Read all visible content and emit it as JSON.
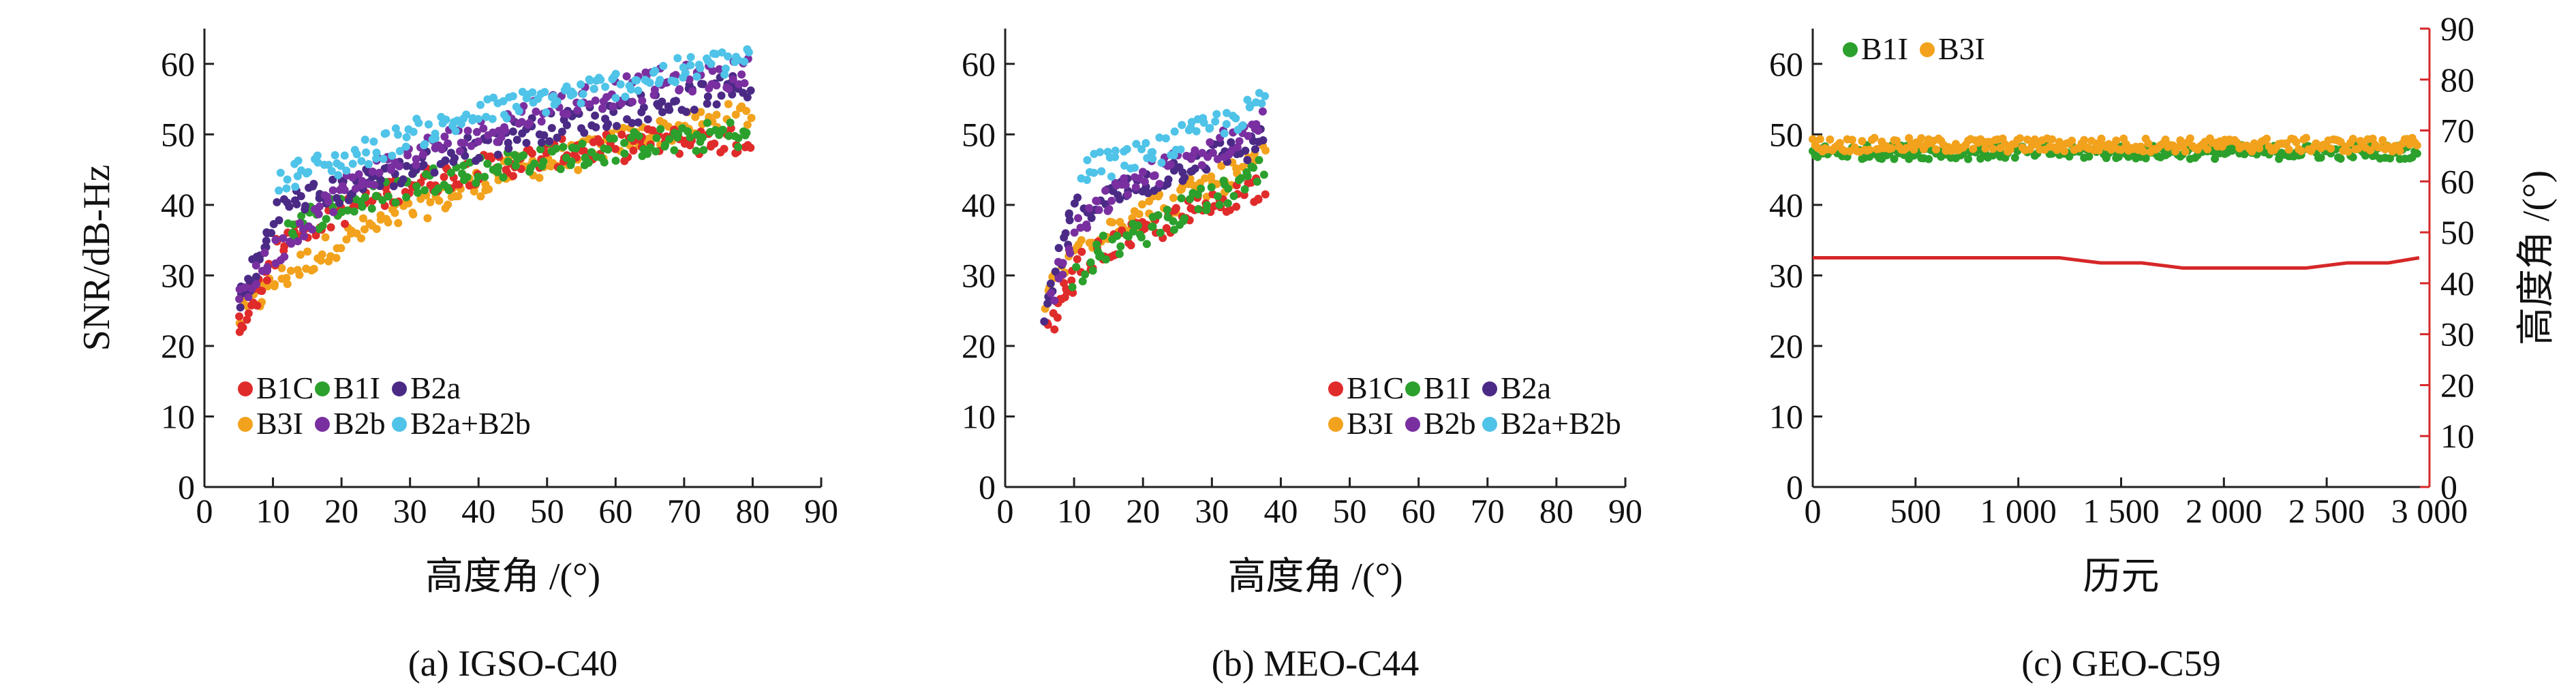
{
  "figure": {
    "captions": [
      "(a) IGSO-C40",
      "(b) MEO-C44",
      "(c) GEO-C59"
    ]
  },
  "series_colors": {
    "B1C": "#e02b2b",
    "B1I": "#2ca02c",
    "B2a": "#4b2a86",
    "B3I": "#f2a21c",
    "B2b": "#7a2fa0",
    "B2a+B2b": "#4fc3e8",
    "elevation": "#d62728"
  },
  "chart_data": [
    {
      "id": "a",
      "type": "scatter",
      "caption": "(a) IGSO-C40",
      "xlabel": "高度角 /(°)",
      "ylabel": "SNR/dB-Hz",
      "xlim": [
        0,
        90
      ],
      "ylim": [
        0,
        65
      ],
      "xticks": [
        0,
        10,
        20,
        30,
        40,
        50,
        60,
        70,
        80,
        90
      ],
      "yticks": [
        0,
        10,
        20,
        30,
        40,
        50,
        60
      ],
      "legend": {
        "placement": "bottom-left",
        "rows": [
          [
            "B1C",
            "B1I",
            "B2a"
          ],
          [
            "B3I",
            "B2b",
            "B2a+B2b"
          ]
        ]
      },
      "series": [
        {
          "name": "B1C",
          "points": [
            [
              5,
              22
            ],
            [
              6,
              25
            ],
            [
              7,
              27
            ],
            [
              8,
              28
            ],
            [
              9,
              31
            ],
            [
              10,
              33
            ],
            [
              12,
              35
            ],
            [
              15,
              37
            ],
            [
              20,
              39
            ],
            [
              25,
              41
            ],
            [
              30,
              43
            ],
            [
              35,
              44
            ],
            [
              40,
              45
            ],
            [
              45,
              46
            ],
            [
              50,
              47
            ],
            [
              55,
              48
            ],
            [
              60,
              48
            ],
            [
              65,
              49
            ],
            [
              70,
              49
            ],
            [
              75,
              49
            ],
            [
              80,
              49
            ]
          ]
        },
        {
          "name": "B1I",
          "points": [
            [
              12,
              37
            ],
            [
              15,
              38
            ],
            [
              20,
              40
            ],
            [
              25,
              41
            ],
            [
              30,
              43
            ],
            [
              35,
              44
            ],
            [
              40,
              45
            ],
            [
              45,
              46
            ],
            [
              50,
              47
            ],
            [
              55,
              47
            ],
            [
              60,
              48
            ],
            [
              65,
              49
            ],
            [
              70,
              49
            ],
            [
              75,
              50
            ],
            [
              80,
              50
            ]
          ]
        },
        {
          "name": "B2a",
          "points": [
            [
              5,
              26
            ],
            [
              6,
              28
            ],
            [
              7,
              30
            ],
            [
              8,
              32
            ],
            [
              9,
              35
            ],
            [
              10,
              38
            ],
            [
              12,
              40
            ],
            [
              15,
              41
            ],
            [
              20,
              42
            ],
            [
              25,
              44
            ],
            [
              30,
              45
            ],
            [
              35,
              47
            ],
            [
              40,
              48
            ],
            [
              45,
              50
            ],
            [
              50,
              51
            ],
            [
              55,
              52
            ],
            [
              60,
              53
            ],
            [
              65,
              54
            ],
            [
              70,
              55
            ],
            [
              75,
              56
            ],
            [
              80,
              57
            ]
          ]
        },
        {
          "name": "B3I",
          "points": [
            [
              5,
              24
            ],
            [
              7,
              26
            ],
            [
              10,
              29
            ],
            [
              15,
              32
            ],
            [
              20,
              35
            ],
            [
              25,
              37
            ],
            [
              30,
              39
            ],
            [
              35,
              41
            ],
            [
              40,
              43
            ],
            [
              45,
              45
            ],
            [
              50,
              46
            ],
            [
              55,
              47
            ],
            [
              60,
              49
            ],
            [
              65,
              50
            ],
            [
              70,
              51
            ],
            [
              75,
              52
            ],
            [
              80,
              53
            ]
          ]
        },
        {
          "name": "B2b",
          "points": [
            [
              5,
              27
            ],
            [
              7,
              29
            ],
            [
              10,
              33
            ],
            [
              15,
              38
            ],
            [
              20,
              42
            ],
            [
              25,
              45
            ],
            [
              30,
              47
            ],
            [
              35,
              49
            ],
            [
              40,
              50
            ],
            [
              45,
              52
            ],
            [
              50,
              54
            ],
            [
              55,
              55
            ],
            [
              60,
              56
            ],
            [
              65,
              57
            ],
            [
              70,
              58
            ],
            [
              75,
              58
            ],
            [
              80,
              59
            ]
          ]
        },
        {
          "name": "B2a+B2b",
          "points": [
            [
              11,
              44
            ],
            [
              15,
              45
            ],
            [
              20,
              46
            ],
            [
              25,
              48
            ],
            [
              30,
              50
            ],
            [
              35,
              51
            ],
            [
              40,
              53
            ],
            [
              45,
              54
            ],
            [
              50,
              55
            ],
            [
              55,
              56
            ],
            [
              60,
              57
            ],
            [
              65,
              58
            ],
            [
              70,
              59
            ],
            [
              75,
              60
            ],
            [
              80,
              61
            ]
          ]
        }
      ]
    },
    {
      "id": "b",
      "type": "scatter",
      "caption": "(b) MEO-C44",
      "xlabel": "高度角 /(°)",
      "ylabel": "",
      "xlim": [
        0,
        90
      ],
      "ylim": [
        0,
        65
      ],
      "xticks": [
        0,
        10,
        20,
        30,
        40,
        50,
        60,
        70,
        80,
        90
      ],
      "yticks": [
        0,
        10,
        20,
        30,
        40,
        50,
        60
      ],
      "legend": {
        "placement": "bottom-right",
        "rows": [
          [
            "B1C",
            "B1I",
            "B2a"
          ],
          [
            "B3I",
            "B2b",
            "B2a+B2b"
          ]
        ]
      },
      "series": [
        {
          "name": "B1C",
          "points": [
            [
              6,
              22
            ],
            [
              7,
              24
            ],
            [
              8,
              26
            ],
            [
              9,
              28
            ],
            [
              10,
              30
            ],
            [
              12,
              32
            ],
            [
              15,
              34
            ],
            [
              20,
              36
            ],
            [
              25,
              38
            ],
            [
              30,
              40
            ],
            [
              35,
              42
            ],
            [
              38,
              43
            ]
          ]
        },
        {
          "name": "B1I",
          "points": [
            [
              10,
              30
            ],
            [
              12,
              32
            ],
            [
              15,
              34
            ],
            [
              20,
              36
            ],
            [
              25,
              39
            ],
            [
              30,
              41
            ],
            [
              35,
              43
            ],
            [
              38,
              45
            ]
          ]
        },
        {
          "name": "B2a",
          "points": [
            [
              6,
              24
            ],
            [
              7,
              28
            ],
            [
              8,
              32
            ],
            [
              9,
              36
            ],
            [
              10,
              39
            ],
            [
              12,
              40
            ],
            [
              15,
              41
            ],
            [
              20,
              43
            ],
            [
              25,
              45
            ],
            [
              30,
              47
            ],
            [
              35,
              48
            ],
            [
              38,
              50
            ]
          ]
        },
        {
          "name": "B3I",
          "points": [
            [
              6,
              26
            ],
            [
              7,
              29
            ],
            [
              8,
              31
            ],
            [
              10,
              33
            ],
            [
              12,
              35
            ],
            [
              15,
              37
            ],
            [
              20,
              39
            ],
            [
              25,
              41
            ],
            [
              30,
              43
            ],
            [
              35,
              45
            ],
            [
              38,
              47
            ]
          ]
        },
        {
          "name": "B2b",
          "points": [
            [
              7,
              27
            ],
            [
              8,
              31
            ],
            [
              10,
              35
            ],
            [
              12,
              38
            ],
            [
              15,
              41
            ],
            [
              20,
              44
            ],
            [
              25,
              46
            ],
            [
              30,
              48
            ],
            [
              35,
              50
            ],
            [
              38,
              52
            ]
          ]
        },
        {
          "name": "B2a+B2b",
          "points": [
            [
              11,
              45
            ],
            [
              15,
              46
            ],
            [
              20,
              47
            ],
            [
              25,
              49
            ],
            [
              30,
              51
            ],
            [
              35,
              53
            ],
            [
              38,
              55
            ]
          ]
        }
      ]
    },
    {
      "id": "c",
      "type": "scatter+line",
      "caption": "(c) GEO-C59",
      "xlabel": "历元",
      "ylabel": "",
      "ylabel_right": "高度角 /(°)",
      "xlim": [
        0,
        3000
      ],
      "ylim": [
        0,
        65
      ],
      "ylim_right": [
        0,
        90
      ],
      "xticks": [
        0,
        500,
        1000,
        1500,
        2000,
        2500,
        3000
      ],
      "xtick_labels": [
        "0",
        "500",
        "1 000",
        "1 500",
        "2 000",
        "2 500",
        "3 000"
      ],
      "yticks": [
        0,
        10,
        20,
        30,
        40,
        50,
        60
      ],
      "yticks_right": [
        0,
        10,
        20,
        30,
        40,
        50,
        60,
        70,
        80,
        90
      ],
      "legend": {
        "placement": "top-left",
        "rows": [
          [
            "B1I",
            "B3I"
          ]
        ]
      },
      "series": [
        {
          "name": "B1I",
          "band": [
            46.5,
            48.5
          ]
        },
        {
          "name": "B3I",
          "band": [
            47.5,
            49.5
          ]
        },
        {
          "name": "elevation",
          "axis": "right",
          "points": [
            [
              0,
              45
            ],
            [
              500,
              45
            ],
            [
              1000,
              45
            ],
            [
              1200,
              45
            ],
            [
              1400,
              44
            ],
            [
              1600,
              44
            ],
            [
              1800,
              43
            ],
            [
              2000,
              43
            ],
            [
              2200,
              43
            ],
            [
              2400,
              43
            ],
            [
              2600,
              44
            ],
            [
              2800,
              44
            ],
            [
              2950,
              45
            ]
          ]
        }
      ]
    }
  ]
}
